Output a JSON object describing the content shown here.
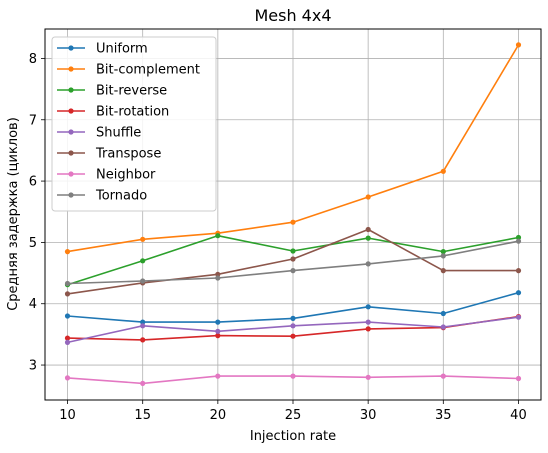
{
  "chart_data": {
    "type": "line",
    "title": "Mesh 4x4",
    "xlabel": "Injection rate",
    "ylabel": "Средняя задержка (циклов)",
    "x": [
      10,
      15,
      20,
      25,
      30,
      35,
      40
    ],
    "x_ticks": [
      10,
      15,
      20,
      25,
      30,
      35,
      40
    ],
    "y_ticks": [
      3,
      4,
      5,
      6,
      7,
      8
    ],
    "xlim": [
      8.5,
      41.5
    ],
    "ylim": [
      2.43,
      8.48
    ],
    "grid": true,
    "legend_position": "top-left",
    "series": [
      {
        "name": "Uniform",
        "color": "#1f77b4",
        "values": [
          3.8,
          3.7,
          3.7,
          3.76,
          3.95,
          3.84,
          4.18
        ]
      },
      {
        "name": "Bit-complement",
        "color": "#ff7f0e",
        "values": [
          4.85,
          5.05,
          5.15,
          5.33,
          5.74,
          6.16,
          8.22
        ]
      },
      {
        "name": "Bit-reverse",
        "color": "#2ca02c",
        "values": [
          4.31,
          4.7,
          5.11,
          4.86,
          5.07,
          4.85,
          5.08
        ]
      },
      {
        "name": "Bit-rotation",
        "color": "#d62728",
        "values": [
          3.44,
          3.41,
          3.48,
          3.47,
          3.59,
          3.61,
          3.79
        ]
      },
      {
        "name": "Shuffle",
        "color": "#9467bd",
        "values": [
          3.37,
          3.64,
          3.55,
          3.64,
          3.7,
          3.62,
          3.78
        ]
      },
      {
        "name": "Transpose",
        "color": "#8c564b",
        "values": [
          4.16,
          4.34,
          4.48,
          4.73,
          5.21,
          4.54,
          4.54
        ]
      },
      {
        "name": "Neighbor",
        "color": "#e377c2",
        "values": [
          2.79,
          2.7,
          2.82,
          2.82,
          2.8,
          2.82,
          2.78
        ]
      },
      {
        "name": "Tornado",
        "color": "#7f7f7f",
        "values": [
          4.33,
          4.37,
          4.42,
          4.54,
          4.65,
          4.78,
          5.02
        ]
      }
    ]
  }
}
